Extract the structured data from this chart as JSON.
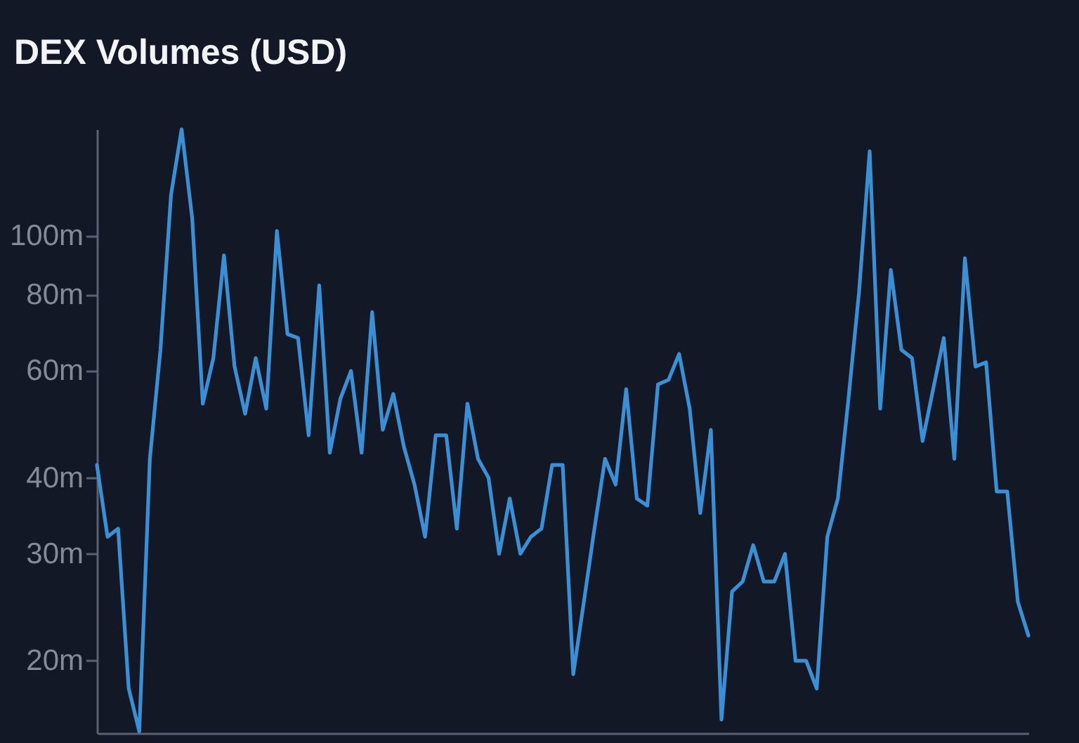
{
  "chart_data": {
    "type": "line",
    "title": "DEX Volumes (USD)",
    "categories": [
      null,
      null,
      null,
      null,
      null,
      null,
      null,
      null,
      null,
      null,
      null,
      null,
      null,
      null,
      null,
      null,
      null,
      null,
      null,
      null,
      null,
      null,
      null,
      null,
      null,
      null,
      null,
      null,
      null,
      null,
      null,
      null,
      null,
      null,
      null,
      null,
      null,
      null,
      null,
      null,
      null,
      null,
      null,
      null,
      null,
      null,
      null,
      null,
      null,
      null,
      null,
      null,
      null,
      null,
      null,
      null,
      null,
      null,
      null,
      null,
      null,
      null,
      null,
      null,
      null,
      null,
      null,
      null,
      null,
      null,
      null,
      null,
      null,
      null,
      null,
      null,
      null,
      null,
      null,
      null,
      null,
      null,
      null,
      null,
      null,
      null,
      null,
      null,
      null
    ],
    "series": [
      {
        "color": "#3b8fd4",
        "values": [
          42,
          32,
          33,
          18,
          15.3,
          43,
          65,
          117,
          150,
          107,
          53,
          63,
          93,
          61,
          51,
          63,
          52,
          102,
          69,
          68,
          47,
          83,
          44,
          54,
          60,
          44,
          75,
          48,
          55,
          45,
          39,
          32,
          47,
          47,
          33,
          53,
          43,
          40,
          30,
          37,
          30,
          32,
          33,
          42,
          42,
          19,
          25,
          33,
          43,
          39,
          56,
          37,
          36,
          57,
          58,
          64,
          52,
          35,
          48,
          16,
          26,
          27,
          31,
          27,
          27,
          30,
          20,
          20,
          18,
          32,
          37,
          54,
          81,
          138,
          52,
          88,
          65,
          63,
          46,
          56,
          68,
          43,
          92,
          61,
          62,
          38,
          38,
          25,
          22
        ]
      }
    ],
    "log": true,
    "ylim": [
      15.2,
      150
    ],
    "yticks": [
      {
        "value": 20,
        "label": "20m"
      },
      {
        "value": 30,
        "label": "30m"
      },
      {
        "value": 40,
        "label": "40m"
      },
      {
        "value": 60,
        "label": "60m"
      },
      {
        "value": 80,
        "label": "80m"
      },
      {
        "value": 100,
        "label": "100m"
      }
    ],
    "tick_labels": "y",
    "grid": false
  }
}
